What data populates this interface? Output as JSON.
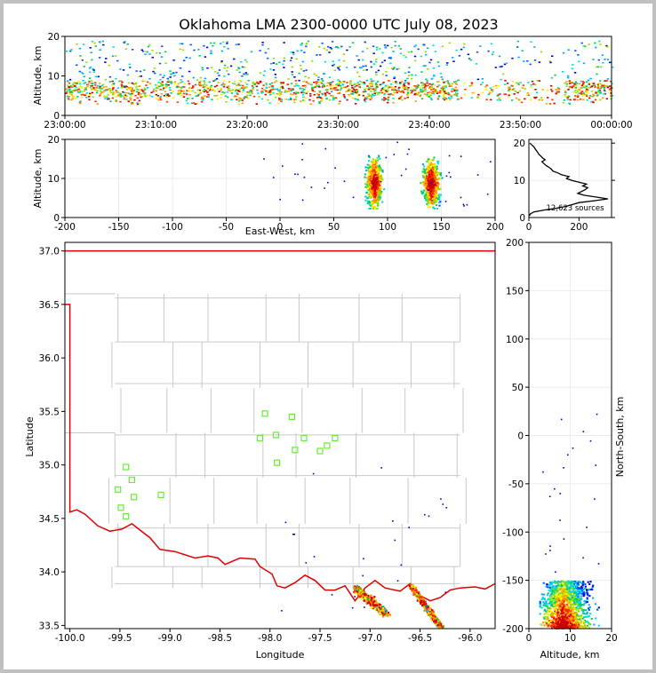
{
  "title": "Oklahoma LMA 2300-0000 UTC July 08, 2023",
  "colors": {
    "boundary": "#e00000",
    "county": "#c8c8c8",
    "station": "#66ee33",
    "frame": "#c0c0c0"
  },
  "chart_data": [
    {
      "name": "time-altitude",
      "type": "heatmap",
      "xlabel": "",
      "ylabel": "Altitude, km",
      "xticks": [
        "23:00:00",
        "23:10:00",
        "23:20:00",
        "23:30:00",
        "23:40:00",
        "23:50:00",
        "00:00:00"
      ],
      "xlim_minutes": [
        0,
        60
      ],
      "yticks": [
        0,
        10,
        20
      ],
      "ylim": [
        0,
        20
      ]
    },
    {
      "name": "ew-altitude",
      "type": "heatmap",
      "xlabel": "East-West, km",
      "ylabel": "Altitude, km",
      "xticks": [
        -200,
        -150,
        -100,
        -50,
        0,
        50,
        100,
        150,
        200
      ],
      "xlim": [
        -200,
        200
      ],
      "yticks": [
        0,
        10,
        20
      ],
      "ylim": [
        0,
        20
      ]
    },
    {
      "name": "altitude-histogram",
      "type": "line",
      "annotation": "12,623 sources",
      "xticks": [
        0,
        200
      ],
      "xlim": [
        0,
        330
      ],
      "yticks": [
        0,
        10,
        20
      ],
      "ylim": [
        0,
        21
      ],
      "profile": [
        [
          0.5,
          2
        ],
        [
          1,
          6
        ],
        [
          1.5,
          20
        ],
        [
          2,
          60
        ],
        [
          2.5,
          110
        ],
        [
          3,
          150
        ],
        [
          3.5,
          175
        ],
        [
          4,
          200
        ],
        [
          4.5,
          260
        ],
        [
          5,
          315
        ],
        [
          5.5,
          270
        ],
        [
          6,
          220
        ],
        [
          6.5,
          195
        ],
        [
          7,
          210
        ],
        [
          7.5,
          225
        ],
        [
          8,
          235
        ],
        [
          8.5,
          215
        ],
        [
          9,
          230
        ],
        [
          9.5,
          200
        ],
        [
          10,
          170
        ],
        [
          10.5,
          150
        ],
        [
          11,
          160
        ],
        [
          11.5,
          130
        ],
        [
          12,
          115
        ],
        [
          12.5,
          95
        ],
        [
          13,
          90
        ],
        [
          13.5,
          80
        ],
        [
          14,
          68
        ],
        [
          14.5,
          60
        ],
        [
          15,
          52
        ],
        [
          15.5,
          65
        ],
        [
          16,
          55
        ],
        [
          16.5,
          48
        ],
        [
          17,
          40
        ],
        [
          17.5,
          35
        ],
        [
          18,
          30
        ],
        [
          18.5,
          25
        ],
        [
          19,
          20
        ],
        [
          19.5,
          12
        ],
        [
          20,
          4
        ]
      ]
    },
    {
      "name": "plan-view",
      "type": "scatter",
      "xlabel": "Longitude",
      "ylabel": "Latitude",
      "xticks": [
        -100.0,
        -99.5,
        -99.0,
        -98.5,
        -98.0,
        -97.5,
        -97.0,
        -96.5,
        -96.0
      ],
      "xlim": [
        -100.05,
        -95.75
      ],
      "yticks": [
        33.5,
        34.0,
        34.5,
        35.0,
        35.5,
        36.0,
        36.5,
        37.0
      ],
      "ylim": [
        33.47,
        37.08
      ],
      "stations": [
        [
          -99.44,
          34.98
        ],
        [
          -99.38,
          34.86
        ],
        [
          -99.52,
          34.77
        ],
        [
          -99.36,
          34.7
        ],
        [
          -99.49,
          34.6
        ],
        [
          -99.44,
          34.52
        ],
        [
          -99.09,
          34.72
        ],
        [
          -98.05,
          35.48
        ],
        [
          -97.78,
          35.45
        ],
        [
          -98.1,
          35.25
        ],
        [
          -97.94,
          35.28
        ],
        [
          -97.66,
          35.25
        ],
        [
          -97.35,
          35.25
        ],
        [
          -97.75,
          35.14
        ],
        [
          -97.43,
          35.18
        ],
        [
          -97.5,
          35.13
        ],
        [
          -97.93,
          35.02
        ]
      ]
    },
    {
      "name": "altitude-ns",
      "type": "heatmap",
      "xlabel": "Altitude, km",
      "ylabel": "North-South, km",
      "xticks": [
        0,
        10,
        20
      ],
      "xlim": [
        0,
        20
      ],
      "yticks": [
        -200,
        -150,
        -100,
        -50,
        0,
        50,
        100,
        150,
        200
      ],
      "ylim": [
        -200,
        200
      ]
    }
  ]
}
